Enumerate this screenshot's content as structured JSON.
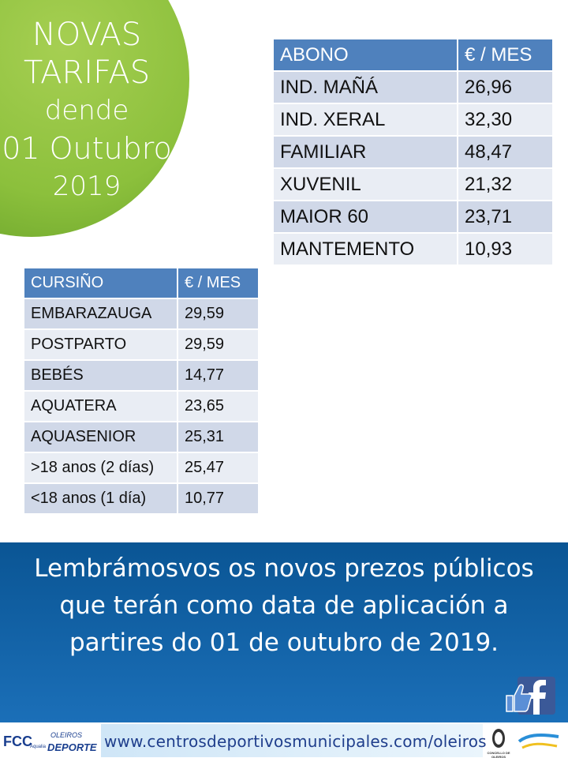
{
  "badge": {
    "lines": [
      "NOVAS",
      "TARIFAS",
      "dende",
      "01 Outubro",
      "2019"
    ]
  },
  "abono_table": {
    "header": [
      "ABONO",
      "€ / MES"
    ],
    "rows": [
      [
        "IND. MAÑÁ",
        "26,96"
      ],
      [
        "IND. XERAL",
        "32,30"
      ],
      [
        "FAMILIAR",
        "48,47"
      ],
      [
        "XUVENIL",
        "21,32"
      ],
      [
        "MAIOR 60",
        "23,71"
      ],
      [
        "MANTEMENTO",
        "10,93"
      ]
    ]
  },
  "cursino_table": {
    "header": [
      "CURSIÑO",
      "€ / MES"
    ],
    "rows": [
      [
        "EMBARAZAUGA",
        "29,59"
      ],
      [
        "POSTPARTO",
        "29,59"
      ],
      [
        "BEBÉS",
        "14,77"
      ],
      [
        "AQUATERA",
        "23,65"
      ],
      [
        "AQUASENIOR",
        "25,31"
      ],
      [
        ">18 anos (2 días)",
        "25,47"
      ],
      [
        "<18 anos (1 día)",
        "10,77"
      ]
    ]
  },
  "banner": {
    "lines": [
      "Lembrámosvos os novos prezos públicos",
      "que terán como data de aplicación a",
      "partires do 01 de outubro de 2019."
    ]
  },
  "footer": {
    "url": "www.centrosdeportivosmunicipales.com/oleiros",
    "logo_left": [
      "FCC",
      "Aqualia",
      "OLEIROS",
      "DEPORTE"
    ],
    "logo_right": "CONCELLO DE OLEIROS"
  }
}
